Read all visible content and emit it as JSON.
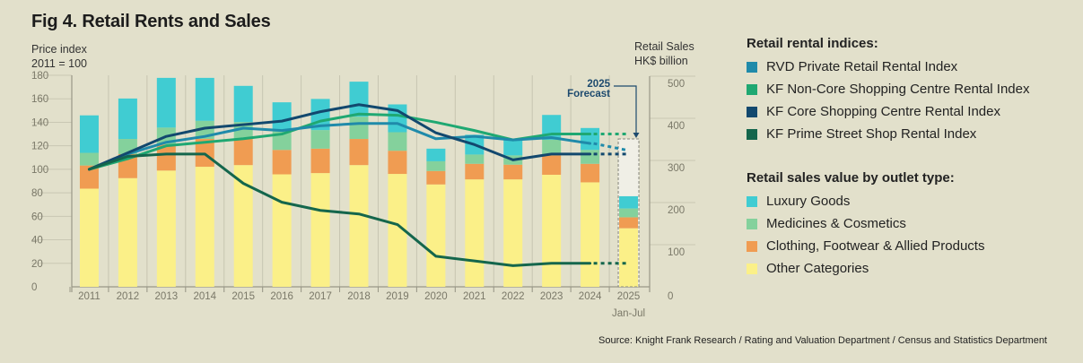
{
  "title": "Fig 4. Retail Rents and Sales",
  "source": "Source: Knight Frank Research / Rating and Valuation Department / Census and Statistics Department",
  "colors": {
    "background": "#e2e0cb",
    "rvd": "#1f8aaa",
    "kf_noncore": "#1fa872",
    "kf_core": "#12486e",
    "kf_prime": "#14664c",
    "luxury": "#40ccd2",
    "medicines": "#84d19c",
    "clothing": "#f09c52",
    "other": "#fbf088"
  },
  "legend": {
    "rental_heading": "Retail rental indices:",
    "rental_items": [
      {
        "label": "RVD Private Retail Rental Index",
        "color": "#1f8aaa"
      },
      {
        "label": "KF Non-Core Shopping Centre Rental Index",
        "color": "#1fa872"
      },
      {
        "label": "KF Core Shopping Centre Rental Index",
        "color": "#12486e"
      },
      {
        "label": "KF Prime Street Shop Rental Index",
        "color": "#14664c"
      }
    ],
    "sales_heading": "Retail sales value by outlet type:",
    "sales_items": [
      {
        "label": "Luxury Goods",
        "color": "#40ccd2"
      },
      {
        "label": "Medicines & Cosmetics",
        "color": "#84d19c"
      },
      {
        "label": "Clothing, Footwear & Allied Products",
        "color": "#f09c52"
      },
      {
        "label": "Other Categories",
        "color": "#fbf088"
      }
    ]
  },
  "chart_data": {
    "type": "bar+line",
    "title": "Fig 4. Retail Rents and Sales",
    "categories": [
      "2011",
      "2012",
      "2013",
      "2014",
      "2015",
      "2016",
      "2017",
      "2018",
      "2019",
      "2020",
      "2021",
      "2022",
      "2023",
      "2024",
      "2025"
    ],
    "category_sublabels": {
      "2025": "Jan-Jul"
    },
    "left_axis": {
      "label_line1": "Price index",
      "label_line2": "2011  = 100",
      "range": [
        0,
        180
      ],
      "ticks": [
        0,
        20,
        40,
        60,
        80,
        100,
        120,
        140,
        160,
        180
      ]
    },
    "right_axis": {
      "label_line1": "Retail Sales",
      "label_line2": "HK$ billion",
      "range": [
        0,
        500
      ],
      "ticks": [
        0,
        100,
        200,
        300,
        400,
        500
      ]
    },
    "bar_series": [
      {
        "name": "Other Categories",
        "color": "#fbf088",
        "values": [
          233,
          258,
          276,
          285,
          289,
          267,
          270,
          289,
          268,
          243,
          255,
          255,
          266,
          248,
          139
        ]
      },
      {
        "name": "Clothing, Footwear & Allied Products",
        "color": "#f09c52",
        "values": [
          55,
          57,
          62,
          66,
          62,
          58,
          58,
          62,
          55,
          32,
          37,
          35,
          46,
          44,
          26
        ]
      },
      {
        "name": "Medicines & Cosmetics",
        "color": "#84d19c",
        "values": [
          30,
          36,
          40,
          43,
          40,
          44,
          44,
          53,
          44,
          23,
          22,
          22,
          37,
          33,
          21
        ]
      },
      {
        "name": "Luxury Goods",
        "color": "#40ccd2",
        "values": [
          89,
          96,
          118,
          102,
          86,
          69,
          74,
          83,
          66,
          30,
          47,
          36,
          59,
          52,
          29
        ]
      }
    ],
    "forecast_2025_total": 351,
    "forecast_annotation_line1": "2025",
    "forecast_annotation_line2": "Forecast",
    "line_series": [
      {
        "name": "RVD Private Retail Rental Index",
        "color": "#1f8aaa",
        "values": [
          100,
          113,
          123,
          128,
          135,
          133,
          137,
          139,
          139,
          126,
          128,
          125,
          127,
          122
        ],
        "forecast_2025": 116
      },
      {
        "name": "KF Non-Core Shopping Centre Rental Index",
        "color": "#1fa872",
        "values": [
          100,
          109,
          120,
          123,
          126,
          130,
          141,
          147,
          146,
          140,
          133,
          125,
          130,
          130
        ],
        "forecast_2025": 130
      },
      {
        "name": "KF Core Shopping Centre Rental Index",
        "color": "#12486e",
        "values": [
          100,
          114,
          128,
          135,
          138,
          141,
          149,
          155,
          150,
          131,
          121,
          108,
          113,
          113
        ],
        "forecast_2025": 113
      },
      {
        "name": "KF Prime Street Shop Rental Index",
        "color": "#14664c",
        "values": [
          100,
          111,
          113,
          113,
          88,
          72,
          65,
          62,
          53,
          26,
          22,
          18,
          20,
          20
        ],
        "forecast_2025": 20
      }
    ],
    "grid": true,
    "legend_position": "right"
  }
}
